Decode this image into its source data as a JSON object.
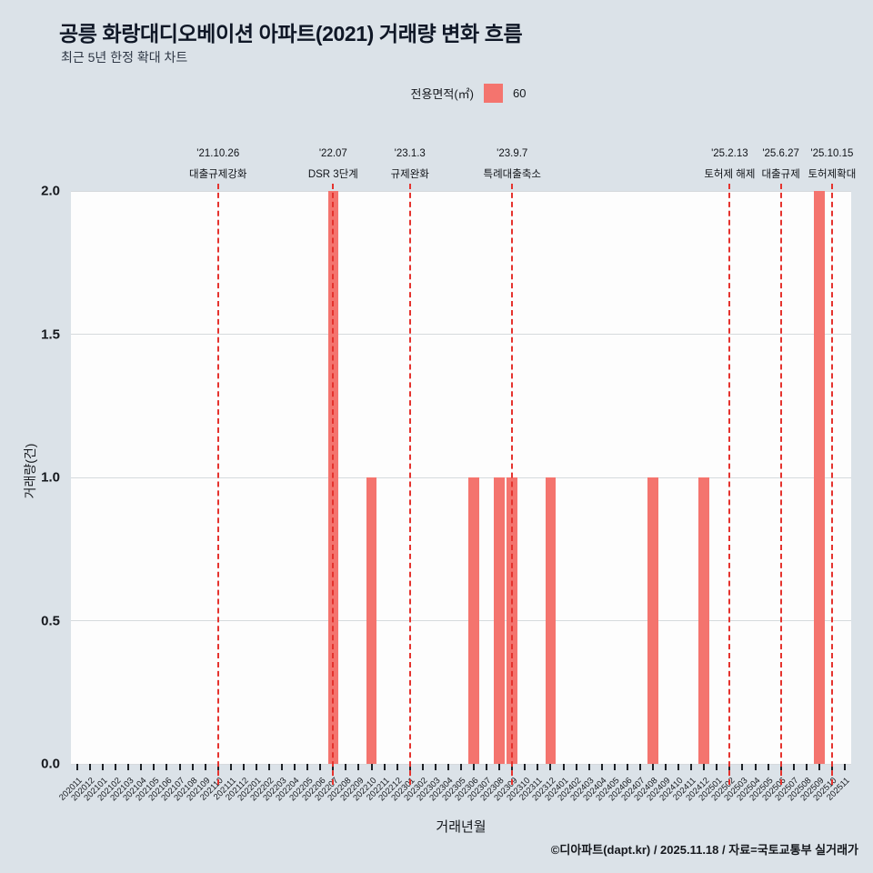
{
  "header": {
    "title": "공릉 화랑대디오베이션 아파트(2021) 거래량 변화 흐름",
    "subtitle": "최근 5년 한정 확대 차트"
  },
  "legend": {
    "label": "전용면적(㎡)",
    "value": "60",
    "swatch_color": "#f4746e"
  },
  "footer": {
    "credit": "©디아파트(dapt.kr) / 2025.11.18 / 자료=국토교통부 실거래가"
  },
  "chart_data": {
    "type": "bar",
    "title": "공릉 화랑대디오베이션 아파트(2021) 거래량 변화 흐름",
    "xlabel": "거래년월",
    "ylabel": "거래량(건)",
    "ylim": [
      0,
      2.0
    ],
    "yticks": [
      0.0,
      0.5,
      1.0,
      1.5,
      2.0
    ],
    "grid": true,
    "legend_position": "top",
    "bar_color": "#f4746e",
    "event_line_color": "#e5332e",
    "categories": [
      "202011",
      "202012",
      "202101",
      "202102",
      "202103",
      "202104",
      "202105",
      "202106",
      "202107",
      "202108",
      "202109",
      "202110",
      "202111",
      "202112",
      "202201",
      "202202",
      "202203",
      "202204",
      "202205",
      "202206",
      "202207",
      "202208",
      "202209",
      "202210",
      "202211",
      "202212",
      "202301",
      "202302",
      "202303",
      "202304",
      "202305",
      "202306",
      "202307",
      "202308",
      "202309",
      "202310",
      "202311",
      "202312",
      "202401",
      "202402",
      "202403",
      "202404",
      "202405",
      "202406",
      "202407",
      "202408",
      "202409",
      "202410",
      "202411",
      "202412",
      "202501",
      "202502",
      "202503",
      "202504",
      "202505",
      "202506",
      "202507",
      "202508",
      "202509",
      "202510",
      "202511"
    ],
    "series": [
      {
        "name": "60",
        "values": [
          0,
          0,
          0,
          0,
          0,
          0,
          0,
          0,
          0,
          0,
          0,
          0,
          0,
          0,
          0,
          0,
          0,
          0,
          0,
          0,
          2,
          0,
          0,
          1,
          0,
          0,
          0,
          0,
          0,
          0,
          0,
          1,
          0,
          1,
          1,
          0,
          0,
          1,
          0,
          0,
          0,
          0,
          0,
          0,
          0,
          1,
          0,
          0,
          0,
          1,
          0,
          0,
          0,
          0,
          0,
          0,
          0,
          0,
          2,
          0,
          0
        ]
      }
    ],
    "events": [
      {
        "x": "202110",
        "date": "'21.10.26",
        "label": "대출규제강화"
      },
      {
        "x": "202207",
        "date": "'22.07",
        "label": "DSR 3단계"
      },
      {
        "x": "202301",
        "date": "'23.1.3",
        "label": "규제완화"
      },
      {
        "x": "202309",
        "date": "'23.9.7",
        "label": "특례대출축소"
      },
      {
        "x": "202502",
        "date": "'25.2.13",
        "label": "토허제 해제"
      },
      {
        "x": "202506",
        "date": "'25.6.27",
        "label": "대출규제"
      },
      {
        "x": "202510",
        "date": "'25.10.15",
        "label": "토허제확대"
      }
    ]
  }
}
